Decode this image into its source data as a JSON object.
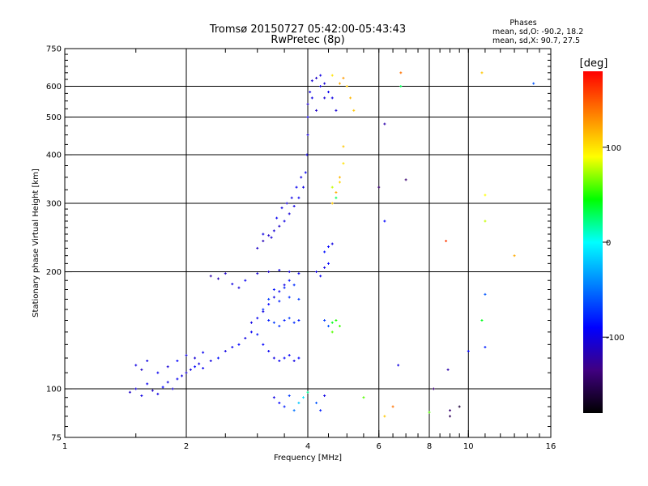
{
  "chart_data": {
    "type": "scatter",
    "title": "Tromsø 20150727 05:42:00-05:43:43",
    "subtitle": "RwPretec (8p)",
    "xlabel": "Frequency [MHz]",
    "ylabel": "Stationary phase Virtual Height [km]",
    "x_scale": "log",
    "y_scale": "log",
    "xlim": [
      1,
      16
    ],
    "ylim": [
      75,
      750
    ],
    "x_ticks": [
      1,
      2,
      4,
      6,
      8,
      10,
      16
    ],
    "y_ticks": [
      75,
      100,
      200,
      300,
      400,
      500,
      600,
      750
    ],
    "x_grid": [
      2,
      4,
      6,
      8,
      10
    ],
    "y_grid": [
      100,
      200,
      300,
      400,
      500,
      600
    ],
    "phase_info": {
      "heading": "Phases",
      "line_o": "mean, sd,O: -90.2, 18.2",
      "line_x": "mean, sd,X: 90.7, 27.5"
    },
    "colorbar": {
      "label": "[deg]",
      "range": [
        -180,
        180
      ],
      "ticks": [
        100,
        0,
        -100
      ],
      "colors": [
        "#ff0000",
        "#ff8000",
        "#ffff00",
        "#00ff00",
        "#00ffff",
        "#0080ff",
        "#0000ff",
        "#400080",
        "#000000"
      ]
    },
    "series": [
      {
        "values_note": "",
        "points": [
          [
            1.45,
            98,
            -110
          ],
          [
            1.5,
            100,
            -105
          ],
          [
            1.55,
            96,
            -100
          ],
          [
            1.6,
            103,
            -95
          ],
          [
            1.65,
            99,
            -110
          ],
          [
            1.7,
            97,
            -100
          ],
          [
            1.75,
            101,
            -90
          ],
          [
            1.8,
            104,
            -100
          ],
          [
            1.85,
            100,
            -105
          ],
          [
            1.9,
            106,
            -95
          ],
          [
            1.95,
            108,
            -100
          ],
          [
            2.0,
            110,
            -105
          ],
          [
            2.05,
            112,
            -100
          ],
          [
            2.1,
            114,
            -90
          ],
          [
            2.15,
            116,
            -100
          ],
          [
            2.2,
            113,
            -95
          ],
          [
            1.5,
            115,
            -100
          ],
          [
            1.55,
            112,
            -110
          ],
          [
            1.6,
            118,
            -100
          ],
          [
            1.7,
            110,
            -95
          ],
          [
            1.8,
            114,
            -105
          ],
          [
            1.9,
            118,
            -90
          ],
          [
            2.0,
            122,
            -100
          ],
          [
            2.1,
            120,
            -105
          ],
          [
            2.2,
            124,
            -95
          ],
          [
            2.3,
            118,
            -100
          ],
          [
            2.4,
            120,
            -85
          ],
          [
            2.5,
            125,
            -100
          ],
          [
            2.6,
            128,
            -95
          ],
          [
            2.7,
            130,
            -90
          ],
          [
            2.8,
            135,
            -100
          ],
          [
            2.9,
            140,
            -95
          ],
          [
            3.0,
            138,
            -85
          ],
          [
            2.9,
            148,
            -100
          ],
          [
            3.0,
            152,
            -95
          ],
          [
            3.1,
            158,
            -100
          ],
          [
            3.2,
            165,
            -90
          ],
          [
            3.3,
            172,
            -100
          ],
          [
            3.4,
            178,
            -95
          ],
          [
            3.5,
            185,
            -100
          ],
          [
            3.6,
            190,
            -85
          ],
          [
            2.3,
            195,
            -120
          ],
          [
            2.4,
            192,
            -115
          ],
          [
            2.5,
            198,
            -110
          ],
          [
            2.6,
            186,
            -100
          ],
          [
            2.7,
            182,
            -105
          ],
          [
            2.8,
            190,
            -95
          ],
          [
            3.1,
            160,
            -75
          ],
          [
            3.2,
            150,
            -80
          ],
          [
            3.3,
            148,
            -70
          ],
          [
            3.4,
            145,
            -75
          ],
          [
            3.5,
            150,
            -80
          ],
          [
            3.6,
            152,
            -70
          ],
          [
            3.7,
            148,
            -75
          ],
          [
            3.8,
            150,
            -80
          ],
          [
            3.1,
            130,
            -90
          ],
          [
            3.2,
            125,
            -95
          ],
          [
            3.3,
            120,
            -100
          ],
          [
            3.4,
            118,
            -95
          ],
          [
            3.5,
            120,
            -90
          ],
          [
            3.6,
            122,
            -95
          ],
          [
            3.7,
            118,
            -100
          ],
          [
            3.8,
            120,
            -90
          ],
          [
            3.2,
            170,
            -70
          ],
          [
            3.4,
            168,
            -80
          ],
          [
            3.6,
            172,
            -75
          ],
          [
            3.8,
            170,
            -70
          ],
          [
            3.3,
            180,
            -85
          ],
          [
            3.5,
            182,
            -80
          ],
          [
            3.7,
            185,
            -75
          ],
          [
            3.0,
            198,
            -105
          ],
          [
            3.2,
            200,
            -110
          ],
          [
            3.4,
            202,
            -100
          ],
          [
            3.6,
            200,
            -105
          ],
          [
            3.8,
            198,
            -95
          ],
          [
            3.0,
            230,
            -110
          ],
          [
            3.1,
            240,
            -115
          ],
          [
            3.2,
            248,
            -110
          ],
          [
            3.3,
            255,
            -105
          ],
          [
            3.4,
            262,
            -110
          ],
          [
            3.5,
            270,
            -100
          ],
          [
            3.6,
            282,
            -105
          ],
          [
            3.7,
            295,
            -100
          ],
          [
            3.8,
            310,
            -95
          ],
          [
            3.9,
            330,
            -100
          ],
          [
            3.95,
            360,
            -95
          ],
          [
            3.98,
            400,
            -100
          ],
          [
            4.0,
            450,
            -105
          ],
          [
            4.0,
            500,
            -100
          ],
          [
            4.0,
            540,
            -110
          ],
          [
            4.05,
            580,
            -100
          ],
          [
            4.1,
            620,
            -105
          ],
          [
            4.2,
            630,
            -110
          ],
          [
            4.3,
            640,
            -100
          ],
          [
            4.4,
            610,
            -105
          ],
          [
            4.5,
            580,
            -95
          ],
          [
            4.6,
            560,
            -100
          ],
          [
            4.7,
            520,
            -105
          ],
          [
            4.2,
            520,
            -110
          ],
          [
            4.3,
            600,
            -100
          ],
          [
            4.4,
            560,
            -105
          ],
          [
            4.1,
            560,
            -100
          ],
          [
            3.1,
            250,
            -100
          ],
          [
            3.25,
            245,
            -105
          ],
          [
            3.35,
            275,
            -95
          ],
          [
            3.45,
            292,
            -100
          ],
          [
            3.55,
            300,
            -105
          ],
          [
            3.65,
            310,
            -100
          ],
          [
            3.75,
            330,
            -95
          ],
          [
            3.85,
            350,
            -100
          ],
          [
            4.2,
            200,
            -100
          ],
          [
            4.3,
            195,
            -95
          ],
          [
            4.4,
            205,
            -100
          ],
          [
            4.5,
            210,
            -90
          ],
          [
            4.4,
            225,
            -85
          ],
          [
            4.5,
            232,
            -90
          ],
          [
            4.6,
            236,
            -100
          ],
          [
            4.4,
            150,
            -70
          ],
          [
            4.5,
            145,
            -60
          ],
          [
            4.6,
            148,
            40
          ],
          [
            4.7,
            150,
            50
          ],
          [
            4.8,
            145,
            55
          ],
          [
            4.6,
            140,
            60
          ],
          [
            4.6,
            300,
            110
          ],
          [
            4.7,
            320,
            120
          ],
          [
            4.8,
            350,
            115
          ],
          [
            4.9,
            380,
            100
          ],
          [
            4.9,
            420,
            110
          ],
          [
            4.8,
            340,
            105
          ],
          [
            4.7,
            310,
            30
          ],
          [
            4.6,
            330,
            80
          ],
          [
            4.8,
            610,
            120
          ],
          [
            4.9,
            630,
            125
          ],
          [
            5.0,
            600,
            110
          ],
          [
            4.6,
            640,
            100
          ],
          [
            5.1,
            560,
            115
          ],
          [
            5.2,
            520,
            110
          ],
          [
            3.3,
            95,
            -100
          ],
          [
            3.4,
            92,
            -90
          ],
          [
            3.5,
            90,
            -80
          ],
          [
            3.6,
            96,
            -70
          ],
          [
            3.7,
            88,
            -50
          ],
          [
            3.8,
            92,
            -20
          ],
          [
            3.9,
            95,
            -10
          ],
          [
            4.0,
            98,
            20
          ],
          [
            4.2,
            92,
            -60
          ],
          [
            4.3,
            88,
            -80
          ],
          [
            4.4,
            96,
            -100
          ],
          [
            5.5,
            95,
            60
          ],
          [
            6.2,
            85,
            110
          ],
          [
            6.5,
            90,
            140
          ],
          [
            8.0,
            87,
            60
          ],
          [
            9.0,
            88,
            -140
          ],
          [
            9.5,
            90,
            -160
          ],
          [
            9.0,
            85,
            -150
          ],
          [
            6.2,
            480,
            -120
          ],
          [
            6.0,
            330,
            -140
          ],
          [
            7.0,
            345,
            -140
          ],
          [
            6.2,
            270,
            -90
          ],
          [
            8.8,
            240,
            160
          ],
          [
            8.2,
            100,
            -140
          ],
          [
            8.9,
            112,
            -120
          ],
          [
            10.0,
            125,
            -90
          ],
          [
            11.0,
            128,
            -80
          ],
          [
            6.7,
            115,
            -100
          ],
          [
            10.8,
            150,
            40
          ],
          [
            11.0,
            175,
            -60
          ],
          [
            11.0,
            270,
            80
          ],
          [
            11.0,
            315,
            90
          ],
          [
            13.0,
            220,
            120
          ],
          [
            14.5,
            610,
            -60
          ],
          [
            10.8,
            650,
            110
          ],
          [
            6.8,
            600,
            30
          ],
          [
            6.8,
            650,
            140
          ]
        ]
      }
    ]
  }
}
